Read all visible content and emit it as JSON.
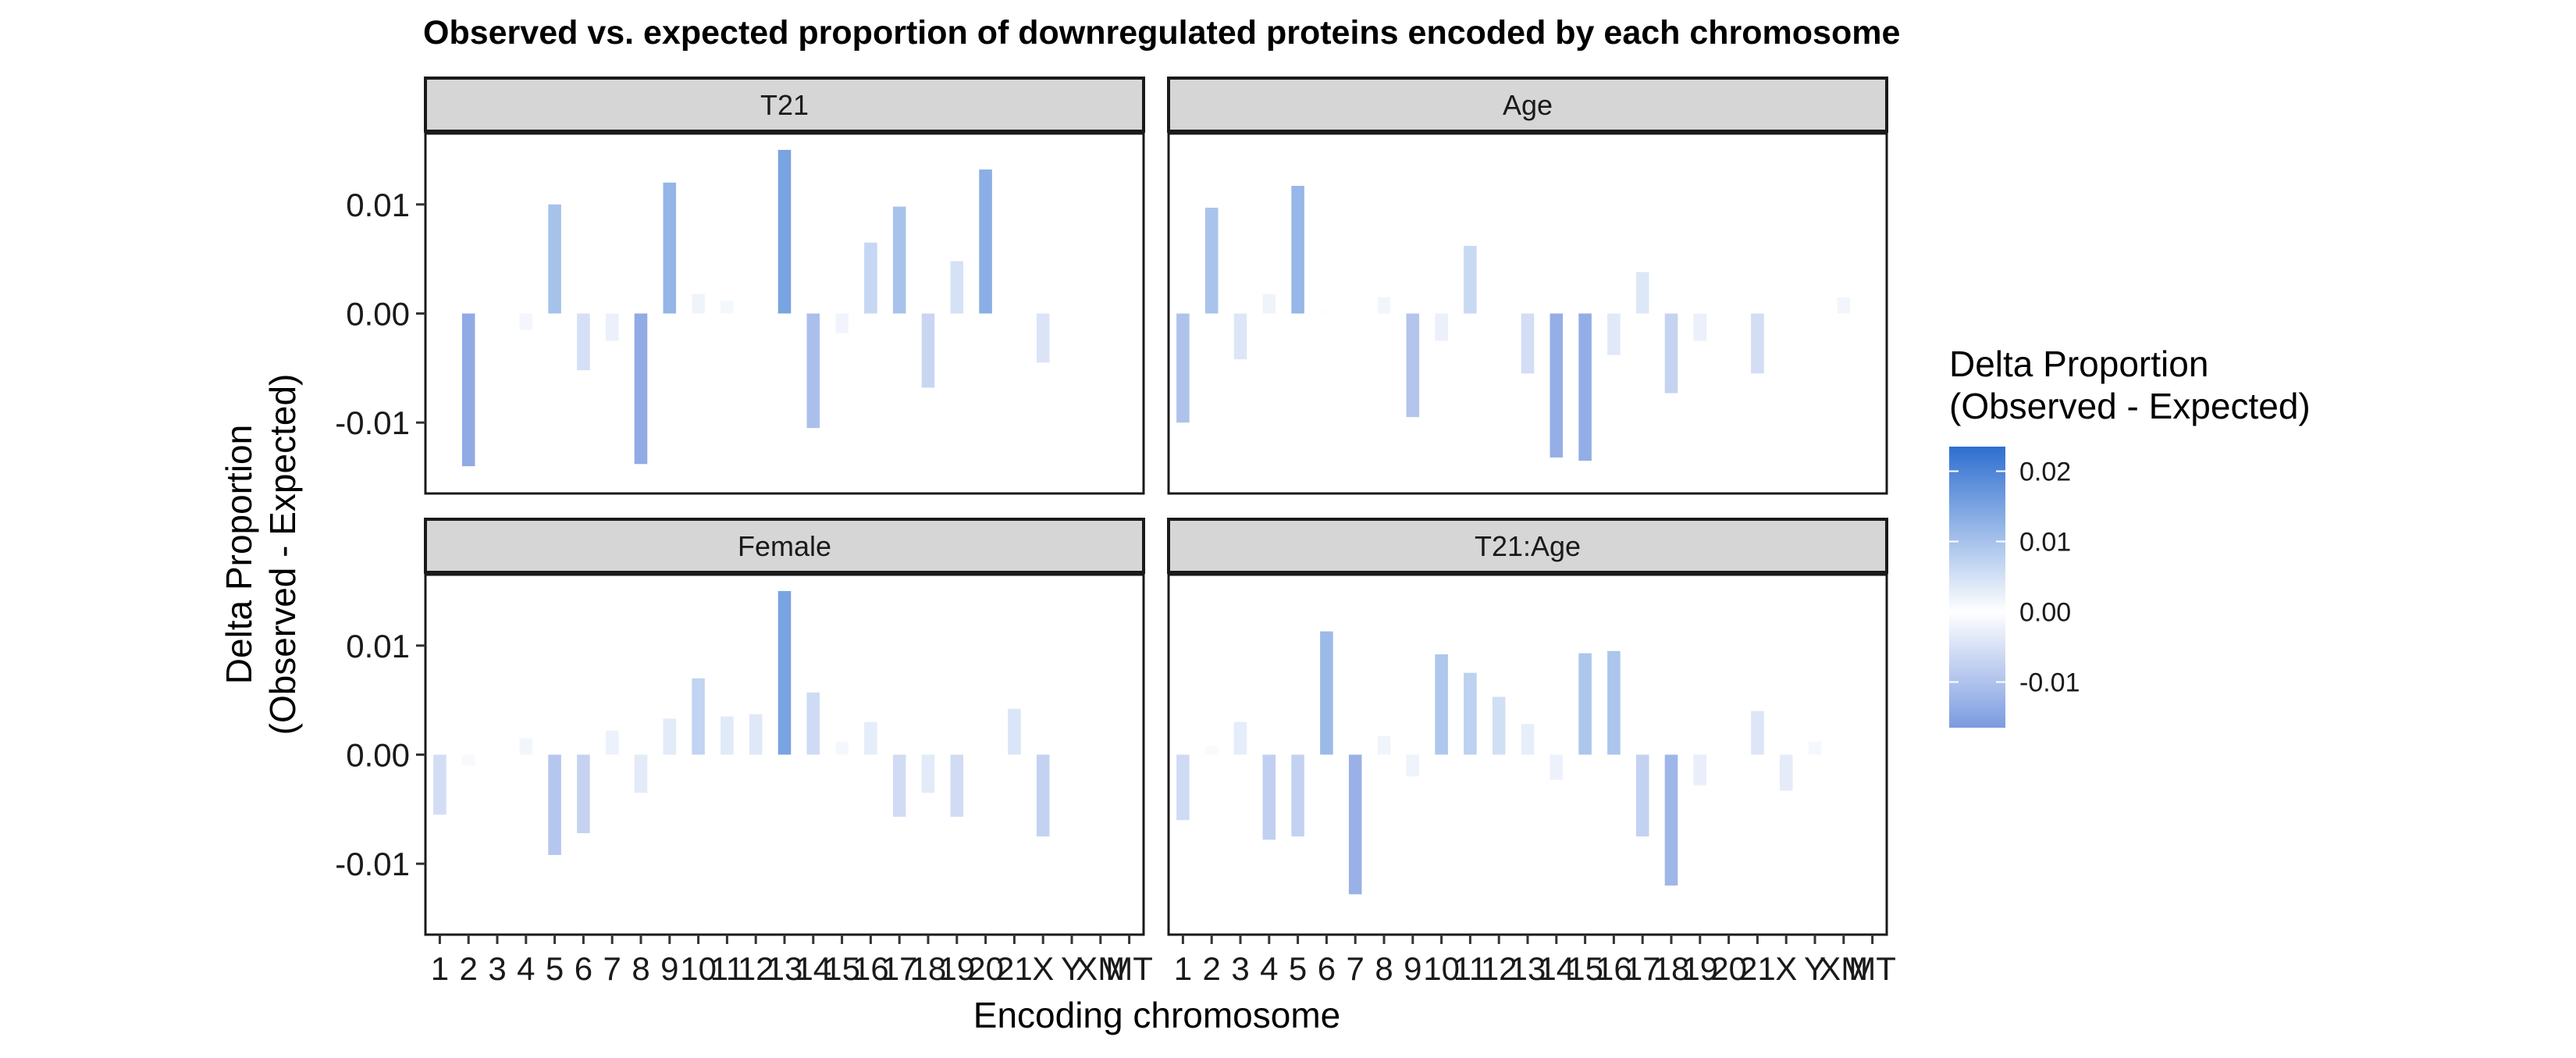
{
  "chart_data": {
    "type": "bar",
    "title": "Observed vs. expected proportion of downregulated proteins encoded by each chromosome",
    "xlabel": "Encoding chromosome",
    "ylabel_line1": "Delta Proportion",
    "ylabel_line2": "(Observed - Expected)",
    "categories": [
      "1",
      "2",
      "3",
      "4",
      "5",
      "6",
      "7",
      "8",
      "9",
      "10",
      "11",
      "12",
      "13",
      "14",
      "15",
      "16",
      "17",
      "18",
      "19",
      "20",
      "21",
      "X",
      "Y",
      "XM",
      "MT"
    ],
    "ylim": [
      -0.0165,
      0.0165
    ],
    "yticks": [
      0.01,
      0.0,
      -0.01
    ],
    "ytick_labels": [
      "0.01",
      "0.00",
      "-0.01"
    ],
    "panels": [
      {
        "name": "T21",
        "values": [
          0,
          -0.014,
          0,
          -0.0015,
          0.01,
          -0.0052,
          -0.0025,
          -0.0138,
          0.012,
          0.0018,
          0.0012,
          0,
          0.015,
          -0.0105,
          -0.0018,
          0.0065,
          0.0098,
          -0.0068,
          0.0048,
          0.0132,
          0,
          -0.0045,
          0,
          0,
          0
        ]
      },
      {
        "name": "Age",
        "values": [
          -0.01,
          0.0097,
          -0.0042,
          0.0018,
          0.0117,
          0.0003,
          0,
          0.0015,
          -0.0095,
          -0.0025,
          0.0062,
          0,
          -0.0055,
          -0.0132,
          -0.0135,
          -0.0038,
          0.0038,
          -0.0073,
          -0.0025,
          -0.0002,
          -0.0055,
          0,
          0,
          0.0015,
          0
        ]
      },
      {
        "name": "Female",
        "values": [
          -0.0055,
          -0.001,
          0,
          0.0015,
          -0.0092,
          -0.0072,
          0.0022,
          -0.0035,
          0.0033,
          0.007,
          0.0035,
          0.0037,
          0.015,
          0.0057,
          0.0012,
          0.003,
          -0.0057,
          -0.0035,
          -0.0057,
          0,
          0.0042,
          -0.0075,
          0,
          0,
          0
        ]
      },
      {
        "name": "T21:Age",
        "values": [
          -0.006,
          0.0008,
          0.003,
          -0.0078,
          -0.0075,
          0.0113,
          -0.0128,
          0.0017,
          -0.002,
          0.0092,
          0.0075,
          0.0053,
          0.0028,
          -0.0023,
          0.0093,
          0.0095,
          -0.0075,
          -0.012,
          -0.0028,
          0,
          0.004,
          -0.0033,
          0.0012,
          0,
          0
        ]
      }
    ],
    "legend": {
      "title_line1": "Delta Proportion",
      "title_line2": "(Observed - Expected)",
      "ticks": [
        0.02,
        0.01,
        0.0,
        -0.01
      ],
      "tick_labels": [
        "0.02",
        "0.01",
        "0.00",
        "-0.01"
      ],
      "range": [
        -0.0165,
        0.0235
      ],
      "position": "right"
    },
    "colors": {
      "high": "#2f6fd0",
      "mid": "#ffffff",
      "low": "#7b9be0",
      "strip_bg": "#d6d6d6",
      "panel_border": "#1a1a1a"
    },
    "grid": false
  }
}
